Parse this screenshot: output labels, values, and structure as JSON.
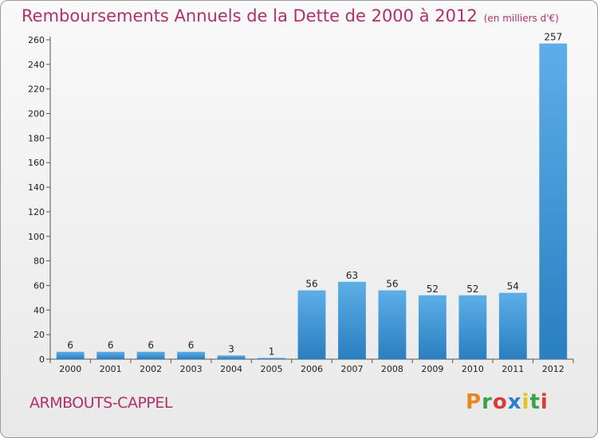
{
  "header": {
    "title": "Remboursements Annuels de la Dette de 2000 à 2012",
    "unit": "(en milliers d'€)"
  },
  "footer": {
    "place": "ARMBOUTS-CAPPEL",
    "logo": "Proxiti"
  },
  "colors": {
    "title": "#b0306a",
    "bar_top": "#5daee8",
    "bar_bottom": "#2a7fc0",
    "logo": [
      "#e8871e",
      "#3aa34a",
      "#d93a3a",
      "#2b7bd0",
      "#e8c21e",
      "#3aa34a",
      "#d93a3a"
    ]
  },
  "chart_data": {
    "type": "bar",
    "categories": [
      "2000",
      "2001",
      "2002",
      "2003",
      "2004",
      "2005",
      "2006",
      "2007",
      "2008",
      "2009",
      "2010",
      "2011",
      "2012"
    ],
    "values": [
      6,
      6,
      6,
      6,
      3,
      1,
      56,
      63,
      56,
      52,
      52,
      54,
      257
    ],
    "ylim": [
      0,
      260
    ],
    "yticks": [
      0,
      20,
      40,
      60,
      80,
      100,
      120,
      140,
      160,
      180,
      200,
      220,
      240,
      260
    ],
    "grid": false,
    "title": "Remboursements Annuels de la Dette de 2000 à 2012",
    "xlabel": "",
    "ylabel": ""
  }
}
